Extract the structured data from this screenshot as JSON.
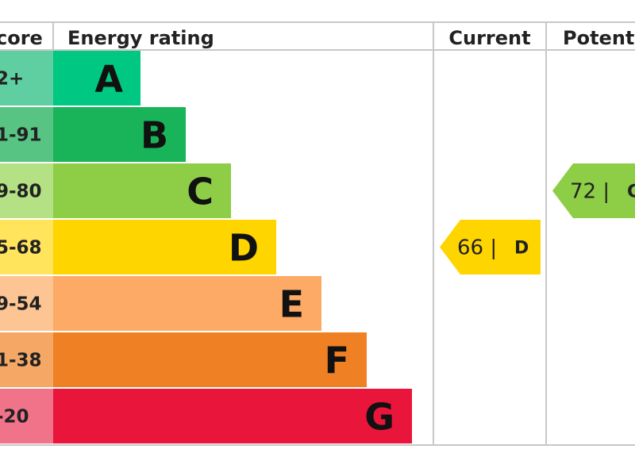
{
  "chart_data": {
    "type": "table",
    "headers": {
      "score": "core",
      "rating": "Energy rating",
      "current": "Current",
      "potential": "Potenti"
    },
    "bands": [
      {
        "score_label": "2+",
        "letter": "A",
        "color": "#00c781",
        "score_bg": "#5fcfa1"
      },
      {
        "score_label": "1-91",
        "letter": "B",
        "color": "#19b459",
        "score_bg": "#58c484"
      },
      {
        "score_label": "9-80",
        "letter": "C",
        "color": "#8dce46",
        "score_bg": "#b4e183"
      },
      {
        "score_label": "5-68",
        "letter": "D",
        "color": "#ffd500",
        "score_bg": "#ffe45c"
      },
      {
        "score_label": "9-54",
        "letter": "E",
        "color": "#fcaa65",
        "score_bg": "#fdc594"
      },
      {
        "score_label": "1-38",
        "letter": "F",
        "color": "#ef8023",
        "score_bg": "#f5a866"
      },
      {
        "score_label": "-20",
        "letter": "G",
        "color": "#e9153b",
        "score_bg": "#f0738a"
      }
    ],
    "current": {
      "value": 66,
      "text": "66 |",
      "letter": "D",
      "color": "#ffd500"
    },
    "potential": {
      "value": 72,
      "text": "72 |",
      "letter": "C",
      "color": "#8dce46"
    }
  }
}
